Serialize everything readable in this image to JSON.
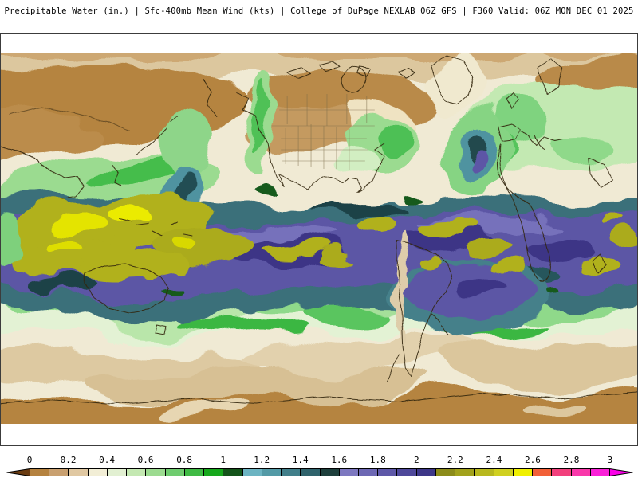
{
  "header": {
    "title": "Precipitable Water (in.) | Sfc-400mb Mean Wind (kts) | College of DuPage NEXLAB 06Z GFS | F360 Valid: 06Z MON DEC 01 2025"
  },
  "chart_data": {
    "type": "heatmap",
    "title": "Precipitable Water (in.)",
    "overlay": "Sfc-400mb Mean Wind (kts)",
    "source": "College of DuPage NEXLAB",
    "model_run": "06Z GFS",
    "forecast_hour": "F360",
    "valid_time": "06Z MON DEC 01 2025",
    "colorbar": {
      "units": "in.",
      "min": 0,
      "max": 3,
      "segment_interval": 0.1,
      "tick_interval": 0.2,
      "tick_labels": [
        "0",
        "0.2",
        "0.4",
        "0.6",
        "0.8",
        "1",
        "1.2",
        "1.4",
        "1.6",
        "1.8",
        "2",
        "2.2",
        "2.4",
        "2.6",
        "2.8",
        "3"
      ],
      "segment_colors": [
        "#b5823f",
        "#c9a070",
        "#e0c8a2",
        "#f2eed6",
        "#e2f0d2",
        "#c4e8b2",
        "#9cdb90",
        "#6fcc6f",
        "#3fba44",
        "#16a81c",
        "#14541a",
        "#6cb4c2",
        "#539aa6",
        "#417f8a",
        "#2f636c",
        "#1d3f3c",
        "#7d78c0",
        "#6d68b4",
        "#5e58a8",
        "#4e489a",
        "#3d3788",
        "#8c8c1a",
        "#a2a21c",
        "#b8b81e",
        "#d0d020",
        "#f0f000",
        "#f26038",
        "#f2407c",
        "#f938aa",
        "#fa20d8"
      ],
      "under_arrow_color": "#6a3b10",
      "over_arrow_color": "#fb00e8"
    }
  }
}
